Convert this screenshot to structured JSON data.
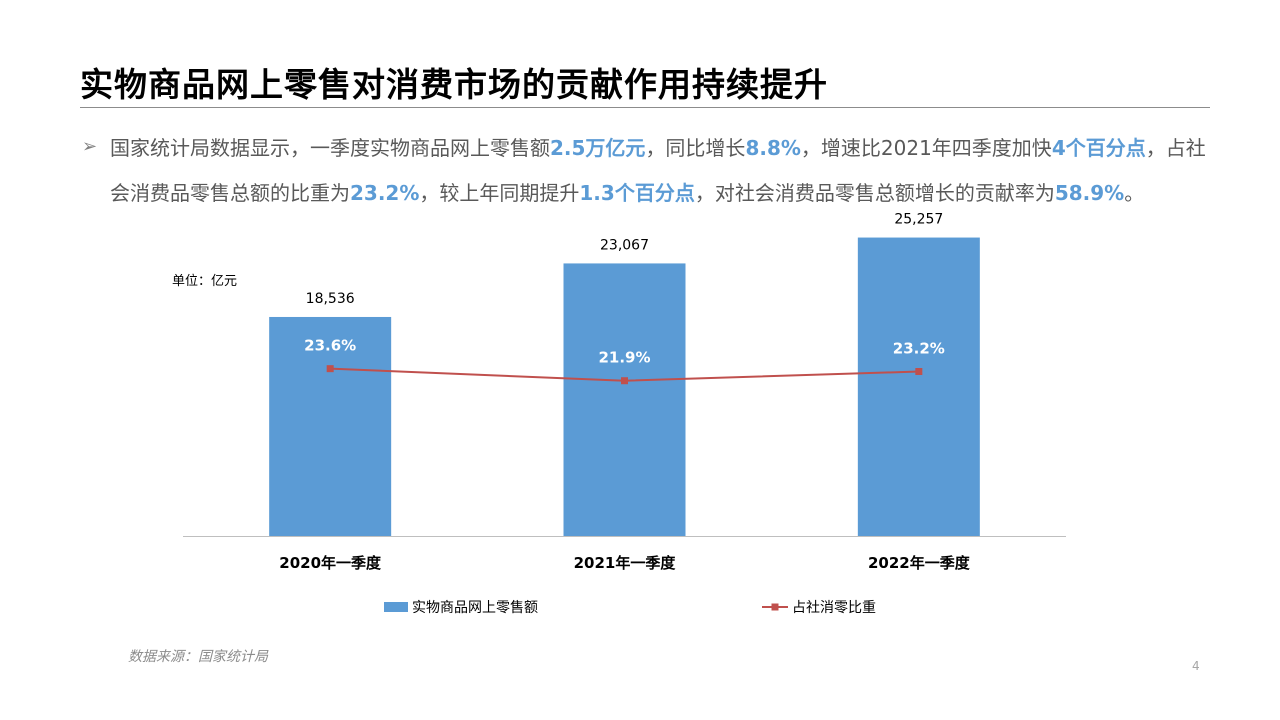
{
  "title": "实物商品网上零售对消费市场的贡献作用持续提升",
  "bullet_icon": "arrow-bullet-icon",
  "paragraph": {
    "s1": "国家统计局数据显示，一季度实物商品网上零售额",
    "h1": "2.5万亿元",
    "s2": "，同比增长",
    "h2": "8.8%",
    "s3": "，增速比2021年四季度加快",
    "h3": "4个百分点",
    "s4": "，占社会消费品零售总额的比重为",
    "h4": "23.2%",
    "s5": "，较上年同期提升",
    "h5": "1.3个百分点",
    "s6": "，对社会消费品零售总额增长的贡献率为",
    "h6": "58.9%",
    "s7": "。"
  },
  "unit_label": "单位：亿元",
  "source": "数据来源：国家统计局",
  "page_number": "4",
  "colors": {
    "bar": "#5b9bd5",
    "line": "#c0504d",
    "highlight": "#5b9bd5"
  },
  "chart_data": {
    "type": "bar",
    "categories": [
      "2020年一季度",
      "2021年一季度",
      "2022年一季度"
    ],
    "series": [
      {
        "name": "实物商品网上零售额",
        "type": "bar",
        "values": [
          18536,
          23067,
          25257
        ],
        "labels": [
          "18,536",
          "23,067",
          "25,257"
        ],
        "axis": "left"
      },
      {
        "name": "占社消零比重",
        "type": "line",
        "values": [
          23.6,
          21.9,
          23.2
        ],
        "labels": [
          "23.6%",
          "21.9%",
          "23.2%"
        ],
        "axis": "right"
      }
    ],
    "ylim": [
      0,
      30000
    ],
    "y2lim": [
      0,
      50
    ],
    "legend": "bottom",
    "grid": false
  }
}
